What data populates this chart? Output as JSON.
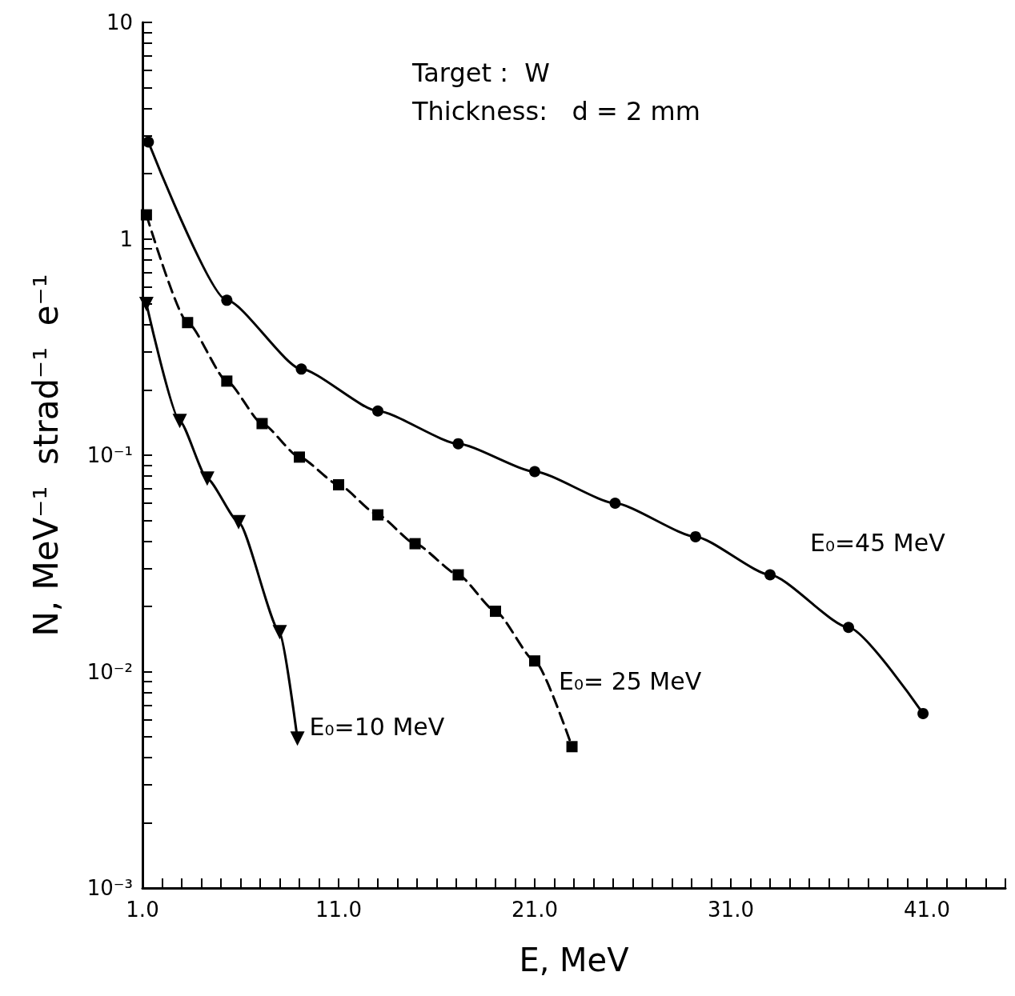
{
  "chart_data": {
    "type": "line",
    "xlabel": "E, MeV",
    "ylabel": "N, MeV⁻¹  strad⁻¹  e⁻¹",
    "annotations": [
      "Target :  W",
      "Thickness:   d = 2 mm"
    ],
    "log": "y",
    "grid": false,
    "legend": false,
    "xlim": [
      1,
      45
    ],
    "ylim": [
      0.001,
      10
    ],
    "xticks": [
      {
        "value": 1,
        "label": "1.0"
      },
      {
        "value": 2,
        "label": null
      },
      {
        "value": 3,
        "label": null
      },
      {
        "value": 4,
        "label": null
      },
      {
        "value": 5,
        "label": null
      },
      {
        "value": 6,
        "label": null
      },
      {
        "value": 7,
        "label": null
      },
      {
        "value": 8,
        "label": null
      },
      {
        "value": 9,
        "label": null
      },
      {
        "value": 10,
        "label": null
      },
      {
        "value": 11,
        "label": "11.0"
      },
      {
        "value": 12,
        "label": null
      },
      {
        "value": 13,
        "label": null
      },
      {
        "value": 14,
        "label": null
      },
      {
        "value": 15,
        "label": null
      },
      {
        "value": 16,
        "label": null
      },
      {
        "value": 17,
        "label": null
      },
      {
        "value": 18,
        "label": null
      },
      {
        "value": 19,
        "label": null
      },
      {
        "value": 20,
        "label": null
      },
      {
        "value": 21,
        "label": "21.0"
      },
      {
        "value": 22,
        "label": null
      },
      {
        "value": 23,
        "label": null
      },
      {
        "value": 24,
        "label": null
      },
      {
        "value": 25,
        "label": null
      },
      {
        "value": 26,
        "label": null
      },
      {
        "value": 27,
        "label": null
      },
      {
        "value": 28,
        "label": null
      },
      {
        "value": 29,
        "label": null
      },
      {
        "value": 30,
        "label": null
      },
      {
        "value": 31,
        "label": "31.0"
      },
      {
        "value": 32,
        "label": null
      },
      {
        "value": 33,
        "label": null
      },
      {
        "value": 34,
        "label": null
      },
      {
        "value": 35,
        "label": null
      },
      {
        "value": 36,
        "label": null
      },
      {
        "value": 37,
        "label": null
      },
      {
        "value": 38,
        "label": null
      },
      {
        "value": 39,
        "label": null
      },
      {
        "value": 40,
        "label": null
      },
      {
        "value": 41,
        "label": "41.0"
      },
      {
        "value": 42,
        "label": null
      },
      {
        "value": 43,
        "label": null
      },
      {
        "value": 44,
        "label": null
      },
      {
        "value": 45,
        "label": null
      }
    ],
    "yticks": [
      {
        "value": 0.001,
        "label": "10⁻³"
      },
      {
        "value": 0.002,
        "label": null
      },
      {
        "value": 0.003,
        "label": null
      },
      {
        "value": 0.004,
        "label": null
      },
      {
        "value": 0.005,
        "label": null
      },
      {
        "value": 0.006,
        "label": null
      },
      {
        "value": 0.007,
        "label": null
      },
      {
        "value": 0.008,
        "label": null
      },
      {
        "value": 0.009,
        "label": null
      },
      {
        "value": 0.01,
        "label": "10⁻²"
      },
      {
        "value": 0.02,
        "label": null
      },
      {
        "value": 0.03,
        "label": null
      },
      {
        "value": 0.04,
        "label": null
      },
      {
        "value": 0.05,
        "label": null
      },
      {
        "value": 0.06,
        "label": null
      },
      {
        "value": 0.07,
        "label": null
      },
      {
        "value": 0.08,
        "label": null
      },
      {
        "value": 0.09,
        "label": null
      },
      {
        "value": 0.1,
        "label": "10⁻¹"
      },
      {
        "value": 0.2,
        "label": null
      },
      {
        "value": 0.3,
        "label": null
      },
      {
        "value": 0.4,
        "label": null
      },
      {
        "value": 0.5,
        "label": null
      },
      {
        "value": 0.6,
        "label": null
      },
      {
        "value": 0.7,
        "label": null
      },
      {
        "value": 0.8,
        "label": null
      },
      {
        "value": 0.9,
        "label": null
      },
      {
        "value": 1,
        "label": "1"
      },
      {
        "value": 2,
        "label": null
      },
      {
        "value": 3,
        "label": null
      },
      {
        "value": 4,
        "label": null
      },
      {
        "value": 5,
        "label": null
      },
      {
        "value": 6,
        "label": null
      },
      {
        "value": 7,
        "label": null
      },
      {
        "value": 8,
        "label": null
      },
      {
        "value": 9,
        "label": null
      },
      {
        "value": 10,
        "label": "10"
      }
    ],
    "series": [
      {
        "name": "E₀=45 MeV",
        "color": "#000000",
        "marker": "circle",
        "line_style": "solid",
        "x": [
          1.3,
          5.3,
          9.1,
          13.0,
          17.1,
          21.0,
          25.1,
          29.2,
          33.0,
          37.0,
          40.8
        ],
        "values": [
          2.8,
          0.52,
          0.25,
          0.16,
          0.113,
          0.084,
          0.06,
          0.042,
          0.028,
          0.016,
          0.0064
        ]
      },
      {
        "name": "E₀= 25 MeV",
        "color": "#000000",
        "marker": "square",
        "line_style": "dashed",
        "x": [
          1.2,
          3.3,
          5.3,
          7.1,
          9.0,
          11.0,
          13.0,
          14.9,
          17.1,
          19.0,
          21.0,
          22.9
        ],
        "values": [
          1.29,
          0.41,
          0.22,
          0.14,
          0.098,
          0.073,
          0.053,
          0.039,
          0.028,
          0.019,
          0.0112,
          0.0045
        ]
      },
      {
        "name": "E₀=10 MeV",
        "color": "#000000",
        "marker": "triangle",
        "line_style": "solid",
        "x": [
          1.2,
          2.9,
          4.3,
          5.9,
          8.0,
          8.9
        ],
        "values": [
          0.5,
          0.144,
          0.078,
          0.049,
          0.0152,
          0.0049
        ]
      }
    ]
  }
}
